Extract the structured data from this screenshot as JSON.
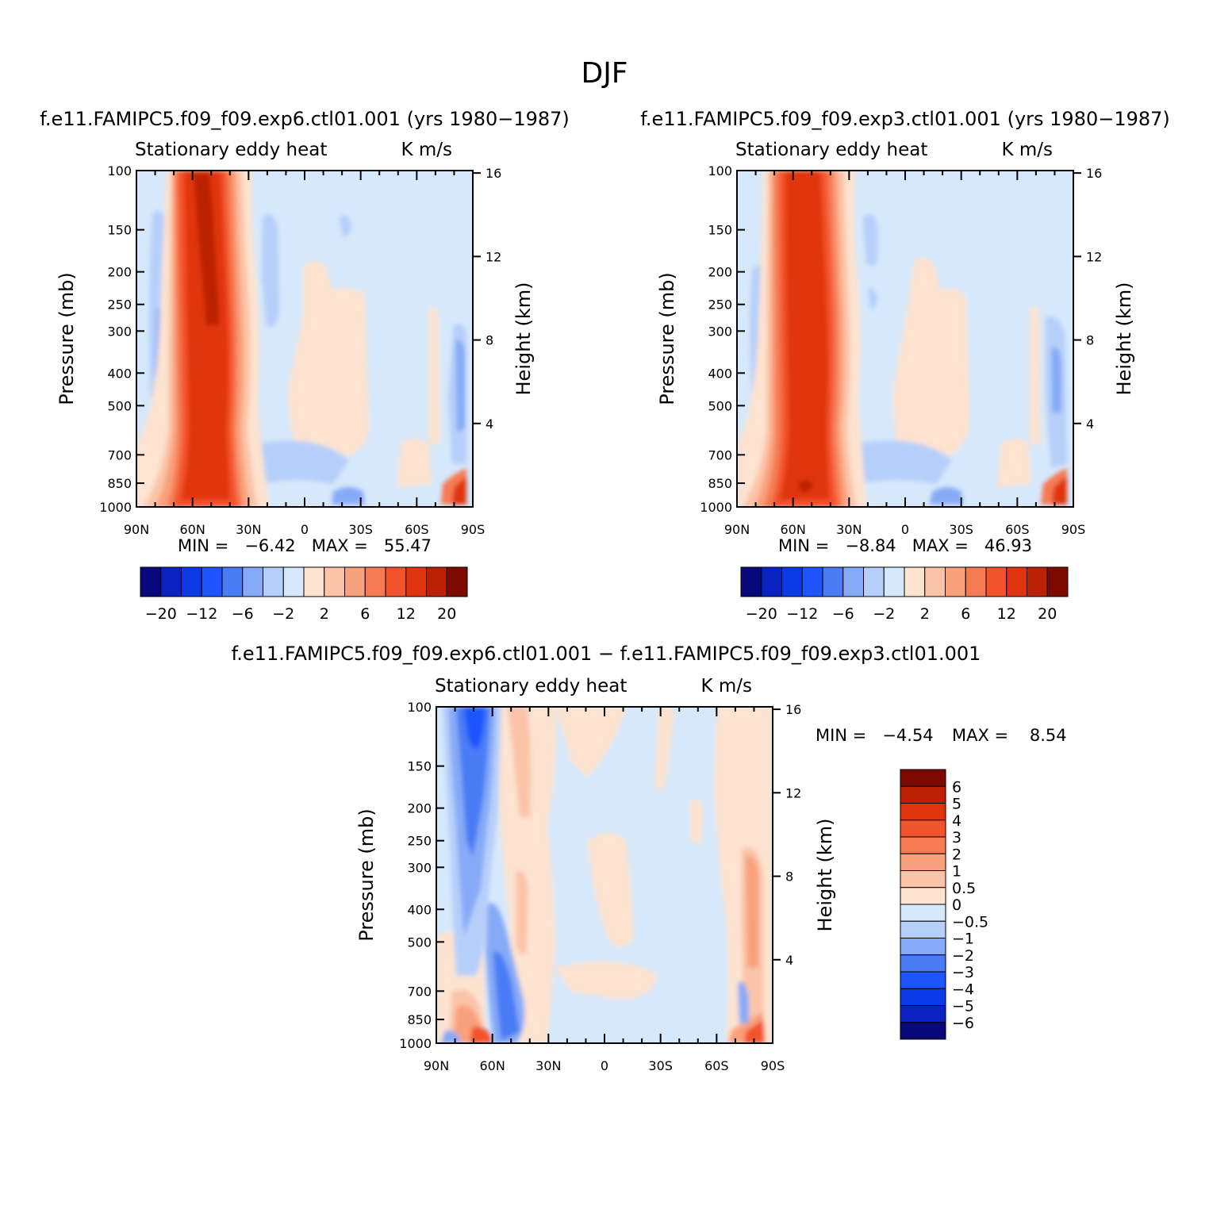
{
  "figure": {
    "title": "DJF"
  },
  "common": {
    "variable": "Stationary eddy heat",
    "units": "K m/s",
    "y_left_label": "Pressure (mb)",
    "y_right_label": "Height (km)",
    "pressure_ticks": [
      "100",
      "150",
      "200",
      "250",
      "300",
      "400",
      "500",
      "700",
      "850",
      "1000"
    ],
    "height_ticks": [
      "16",
      "12",
      "8",
      "4"
    ],
    "lat_ticks": [
      "90N",
      "60N",
      "30N",
      "0",
      "30S",
      "60S",
      "90S"
    ]
  },
  "panels": [
    {
      "title": "f.e11.FAMIPC5.f09_f09.exp6.ctl01.001 (yrs 1980−1987)",
      "stats": "MIN =   −6.42   MAX =   55.47",
      "min": -6.42,
      "max": 55.47
    },
    {
      "title": "f.e11.FAMIPC5.f09_f09.exp3.ctl01.001 (yrs 1980−1987)",
      "stats": "MIN =   −8.84   MAX =   46.93",
      "min": -8.84,
      "max": 46.93
    },
    {
      "title": "f.e11.FAMIPC5.f09_f09.exp6.ctl01.001 − f.e11.FAMIPC5.f09_f09.exp3.ctl01.001",
      "stats_min": "MIN =   −4.54",
      "stats_max": "MAX =    8.54",
      "min": -4.54,
      "max": 8.54
    }
  ],
  "colorbar_main": {
    "colors": [
      "#08087a",
      "#0a22c2",
      "#0c3ae6",
      "#1f55ff",
      "#4a7cf5",
      "#86aaf7",
      "#b6cffa",
      "#d6e8fb",
      "#fde3d0",
      "#fbc4a8",
      "#f9a07c",
      "#f67a52",
      "#f3532c",
      "#e03410",
      "#bb2205",
      "#7c0a00"
    ],
    "labels": [
      "−20",
      "−12",
      "−6",
      "−2",
      "2",
      "6",
      "12",
      "20"
    ]
  },
  "colorbar_diff": {
    "colors": [
      "#7c0a00",
      "#bb2205",
      "#e03410",
      "#f3532c",
      "#f67a52",
      "#f9a07c",
      "#fbc4a8",
      "#fde3d0",
      "#d6e8fb",
      "#b6cffa",
      "#86aaf7",
      "#4a7cf5",
      "#1f55ff",
      "#0c3ae6",
      "#0a22c2",
      "#08087a"
    ],
    "labels": [
      "6",
      "5",
      "4",
      "3",
      "2",
      "1",
      "0.5",
      "0",
      "−0.5",
      "−1",
      "−2",
      "−3",
      "−4",
      "−5",
      "−6"
    ]
  },
  "chart_data": [
    {
      "type": "heatmap",
      "title": "f.e11.FAMIPC5.f09_f09.exp6.ctl01.001 (yrs 1980−1987)",
      "subtitle": "Stationary eddy heat (K m/s)",
      "x": [
        "90N",
        "60N",
        "30N",
        "0",
        "30S",
        "60S",
        "90S"
      ],
      "y_pressure_mb": [
        100,
        150,
        200,
        250,
        300,
        400,
        500,
        700,
        850,
        1000
      ],
      "features": [
        {
          "region": "55N-45N, 100-1000 mb",
          "value_range": [
            12,
            55.47
          ],
          "sign": "positive core"
        },
        {
          "region": "75N, 250-600 mb",
          "value_range": [
            -6.42,
            -2
          ],
          "sign": "negative"
        },
        {
          "region": "85S-90S near surface",
          "value_range": [
            6,
            20
          ],
          "sign": "positive"
        }
      ],
      "min": -6.42,
      "max": 55.47
    },
    {
      "type": "heatmap",
      "title": "f.e11.FAMIPC5.f09_f09.exp3.ctl01.001 (yrs 1980−1987)",
      "subtitle": "Stationary eddy heat (K m/s)",
      "x": [
        "90N",
        "60N",
        "30N",
        "0",
        "30S",
        "60S",
        "90S"
      ],
      "y_pressure_mb": [
        100,
        150,
        200,
        250,
        300,
        400,
        500,
        700,
        850,
        1000
      ],
      "features": [
        {
          "region": "55N-45N, 100-1000 mb",
          "value_range": [
            12,
            46.93
          ],
          "sign": "positive core"
        },
        {
          "region": "75N, 250-600 mb",
          "value_range": [
            -8.84,
            -2
          ],
          "sign": "negative"
        },
        {
          "region": "85S-90S near surface",
          "value_range": [
            6,
            20
          ],
          "sign": "positive"
        }
      ],
      "min": -8.84,
      "max": 46.93
    },
    {
      "type": "heatmap",
      "title": "f.e11.FAMIPC5.f09_f09.exp6.ctl01.001 − f.e11.FAMIPC5.f09_f09.exp3.ctl01.001",
      "subtitle": "Stationary eddy heat (K m/s)",
      "x": [
        "90N",
        "60N",
        "30N",
        "0",
        "30S",
        "60S",
        "90S"
      ],
      "y_pressure_mb": [
        100,
        150,
        200,
        250,
        300,
        400,
        500,
        700,
        850,
        1000
      ],
      "features": [
        {
          "region": "75N-70N, 100-200 mb",
          "value_range": [
            -4.54,
            -3
          ],
          "sign": "negative"
        },
        {
          "region": "70N-65N near surface",
          "value_range": [
            2,
            8.54
          ],
          "sign": "positive"
        },
        {
          "region": "55N near surface",
          "value_range": [
            -4,
            -2
          ],
          "sign": "negative"
        }
      ],
      "min": -4.54,
      "max": 8.54
    }
  ]
}
